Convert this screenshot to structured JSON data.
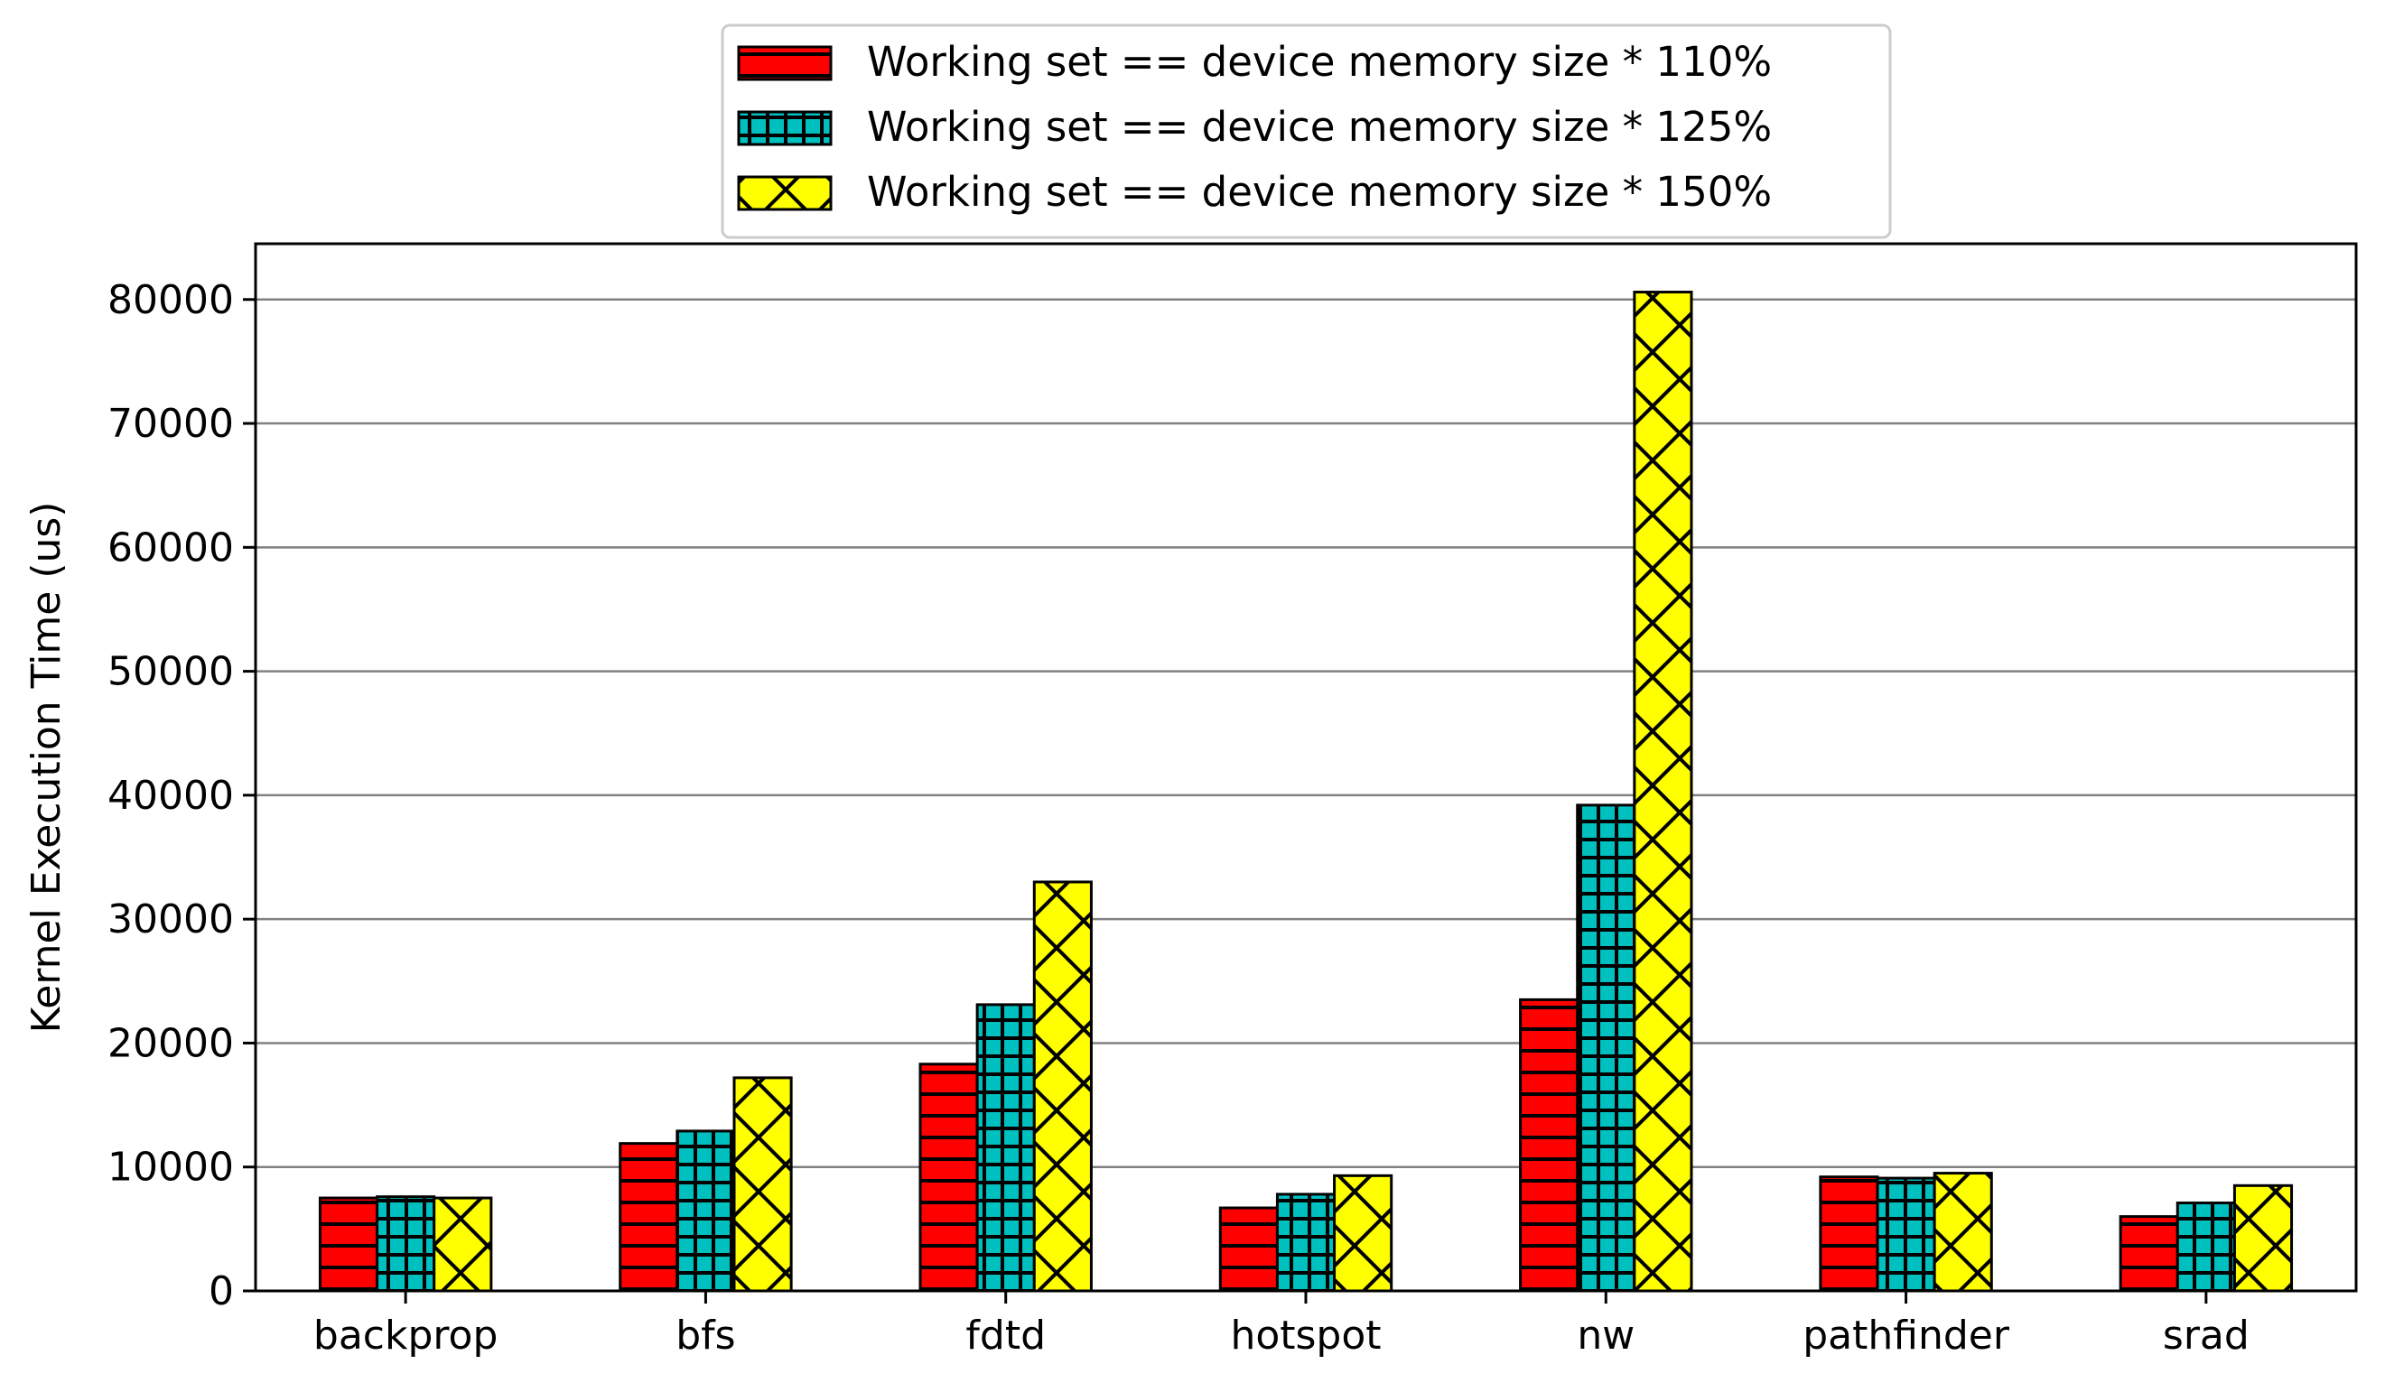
{
  "chart_data": {
    "type": "bar",
    "title": "",
    "xlabel": "",
    "ylabel": "Kernel Execution Time (us)",
    "ylim": [
      0,
      84500
    ],
    "yticks": [
      0,
      10000,
      20000,
      30000,
      40000,
      50000,
      60000,
      70000,
      80000
    ],
    "ytick_labels": [
      "0",
      "10000",
      "20000",
      "30000",
      "40000",
      "50000",
      "60000",
      "70000",
      "80000"
    ],
    "grid": "horizontal",
    "legend_position": "top-center",
    "categories": [
      "backprop",
      "bfs",
      "fdtd",
      "hotspot",
      "nw",
      "pathfinder",
      "srad"
    ],
    "series": [
      {
        "name": "Working set == device memory size * 110%",
        "color": "#ff0000",
        "hatch": "horizontal-lines",
        "values": [
          7500,
          11900,
          18300,
          6700,
          23500,
          9200,
          6000
        ]
      },
      {
        "name": "Working set == device memory size * 125%",
        "color": "#00bfbf",
        "hatch": "grid",
        "values": [
          7600,
          12900,
          23100,
          7800,
          39200,
          9100,
          7100
        ]
      },
      {
        "name": "Working set == device memory size * 150%",
        "color": "#ffff00",
        "hatch": "crosshatch-diagonal",
        "values": [
          7500,
          17200,
          33000,
          9300,
          80600,
          9500,
          8500
        ]
      }
    ]
  }
}
